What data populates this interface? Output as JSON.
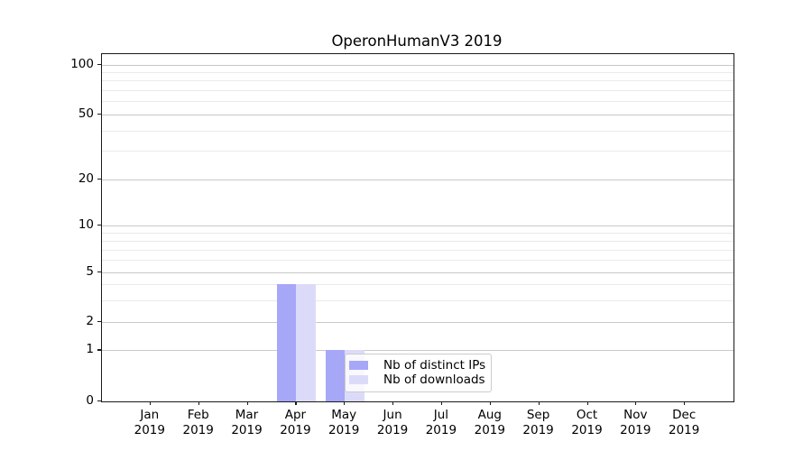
{
  "chart_data": {
    "type": "bar",
    "title": "OperonHumanV3 2019",
    "categories": [
      "Jan",
      "Feb",
      "Mar",
      "Apr",
      "May",
      "Jun",
      "Jul",
      "Aug",
      "Sep",
      "Oct",
      "Nov",
      "Dec"
    ],
    "category_year": "2019",
    "series": [
      {
        "name": "Nb of distinct IPs",
        "color": "#a7a7f8",
        "values": [
          0,
          0,
          0,
          4,
          1,
          0,
          0,
          0,
          0,
          0,
          0,
          0
        ]
      },
      {
        "name": "Nb of downloads",
        "color": "#dbdbf9",
        "values": [
          0,
          0,
          0,
          4,
          1,
          0,
          0,
          0,
          0,
          0,
          0,
          0
        ]
      }
    ],
    "yscale": "symlog",
    "yticks_labeled": [
      0,
      1,
      2,
      5,
      10,
      20,
      50,
      100
    ],
    "yticks_minor": [
      3,
      4,
      6,
      7,
      8,
      9,
      30,
      40,
      60,
      70,
      80,
      90
    ],
    "ylim": [
      0,
      115
    ],
    "grid": true,
    "legend_position": "lower center",
    "colors": {
      "grid_major": "#c9c9c9",
      "grid_minor": "#eaeaea",
      "spine": "#1a1a1a",
      "text": "#000000",
      "legend_border": "#cccccc"
    }
  }
}
